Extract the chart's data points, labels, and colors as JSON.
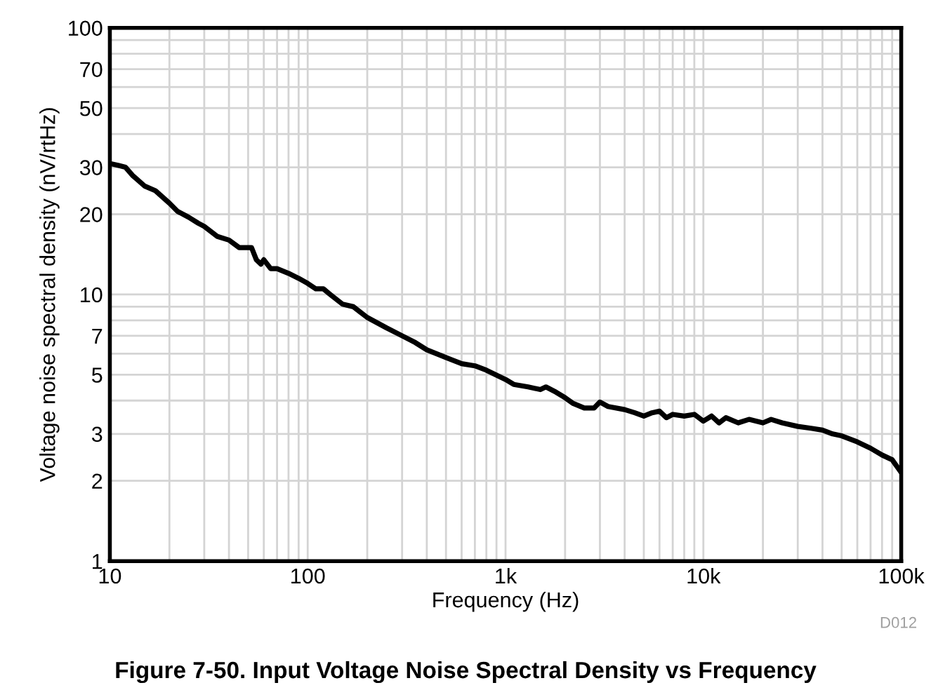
{
  "chart_data": {
    "type": "line",
    "title": "Figure 7-50. Input Voltage Noise Spectral Density vs Frequency",
    "xlabel": "Frequency (Hz)",
    "ylabel": "Voltage noise spectral density (nV/rtHz)",
    "annotations": [
      "D012"
    ],
    "log": "xy",
    "grid": true,
    "line_style": "solid",
    "marker": "none",
    "xlim": [
      10,
      100000
    ],
    "ylim": [
      1,
      100
    ],
    "xticks": [
      {
        "value": 10,
        "label": "10"
      },
      {
        "value": 100,
        "label": "100"
      },
      {
        "value": 1000,
        "label": "1k"
      },
      {
        "value": 10000,
        "label": "10k"
      },
      {
        "value": 100000,
        "label": "100k"
      }
    ],
    "yticks": [
      1,
      2,
      3,
      5,
      7,
      10,
      20,
      30,
      50,
      70,
      100
    ],
    "series": [
      {
        "color": "#000000",
        "x": [
          10,
          11,
          12,
          13,
          15,
          17,
          20,
          22,
          25,
          28,
          30,
          35,
          40,
          45,
          50,
          52,
          55,
          58,
          60,
          65,
          70,
          80,
          90,
          100,
          110,
          120,
          130,
          150,
          170,
          200,
          250,
          300,
          350,
          400,
          500,
          600,
          700,
          800,
          1000,
          1100,
          1300,
          1500,
          1600,
          1800,
          2000,
          2200,
          2500,
          2800,
          3000,
          3300,
          4000,
          4500,
          5000,
          5500,
          6000,
          6500,
          7000,
          8000,
          9000,
          10000,
          11000,
          12000,
          13000,
          15000,
          17000,
          20000,
          22000,
          25000,
          30000,
          35000,
          40000,
          45000,
          50000,
          60000,
          70000,
          80000,
          90000,
          100000
        ],
        "values": [
          31,
          30.5,
          30,
          28,
          25.5,
          24.5,
          22,
          20.5,
          19.5,
          18.5,
          18,
          16.5,
          16,
          15,
          15,
          15,
          13.5,
          13,
          13.5,
          12.5,
          12.5,
          12,
          11.5,
          11,
          10.5,
          10.5,
          10,
          9.2,
          9,
          8.2,
          7.5,
          7,
          6.6,
          6.2,
          5.8,
          5.5,
          5.4,
          5.2,
          4.8,
          4.6,
          4.5,
          4.4,
          4.5,
          4.3,
          4.1,
          3.9,
          3.75,
          3.75,
          3.95,
          3.8,
          3.7,
          3.6,
          3.5,
          3.6,
          3.65,
          3.45,
          3.55,
          3.5,
          3.55,
          3.35,
          3.5,
          3.3,
          3.45,
          3.3,
          3.4,
          3.3,
          3.4,
          3.3,
          3.2,
          3.15,
          3.1,
          3.0,
          2.95,
          2.8,
          2.65,
          2.5,
          2.4,
          2.15
        ]
      }
    ]
  }
}
